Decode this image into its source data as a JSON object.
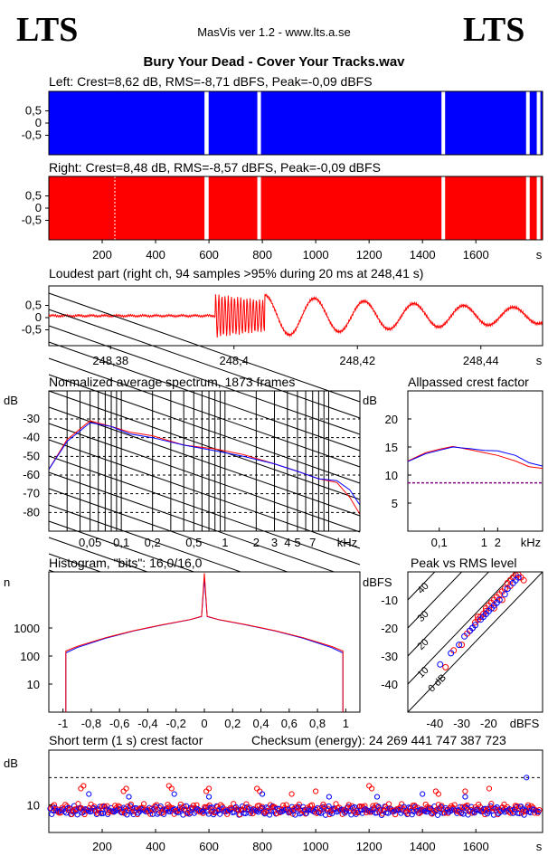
{
  "header": {
    "logo_left": "LTS",
    "logo_right": "LTS",
    "app_title": "MasVis ver 1.2 - www.lts.a.se",
    "song_title": "Bury Your Dead - Cover Your Tracks.wav"
  },
  "colors": {
    "left": "#0000ff",
    "right": "#ff0000",
    "axis": "#000000"
  },
  "chart_data": [
    {
      "id": "left",
      "type": "area",
      "title": "Left: Crest=8,62 dB, RMS=-8,71 dBFS, Peak=-0,09 dBFS",
      "ylim": [
        -1,
        1
      ],
      "y_ticks": [
        "0,5",
        "0",
        "-0,5"
      ],
      "xlim": [
        0,
        1850
      ],
      "gaps": [
        590,
        592,
        788,
        1478,
        1795,
        1835
      ]
    },
    {
      "id": "right",
      "type": "area",
      "title": "Right: Crest=8,48 dB, RMS=-8,57 dBFS, Peak=-0,09 dBFS",
      "ylim": [
        -1,
        1
      ],
      "y_ticks": [
        "0,5",
        "0",
        "-0,5"
      ],
      "xlim": [
        0,
        1850
      ],
      "x_ticks": [
        "200",
        "400",
        "600",
        "800",
        "1000",
        "1200",
        "1400",
        "1600",
        "s"
      ],
      "gaps": [
        590,
        592,
        788,
        1478,
        1795,
        1835
      ]
    },
    {
      "id": "loudest",
      "type": "line",
      "title": "Loudest part (right ch, 94 samples >95% during 20 ms at 248,41 s)",
      "ylim": [
        -1,
        1
      ],
      "y_ticks": [
        "0,5",
        "0",
        "-0,5"
      ],
      "xlim": [
        248.37,
        248.45
      ],
      "x_ticks": [
        "248,38",
        "248,4",
        "248,42",
        "248,44",
        "s"
      ]
    },
    {
      "id": "spectrum",
      "type": "line",
      "title": "Normalized average spectrum, 1873 frames",
      "ylabel": "dB",
      "y_ticks": [
        "-30",
        "-40",
        "-50",
        "-60",
        "-70",
        "-80"
      ],
      "ylim": [
        -90,
        -15
      ],
      "x_ticks": [
        "0,05",
        "0,1",
        "0,2",
        "0,5",
        "1",
        "2",
        "3",
        "4",
        "5",
        "7",
        "kHz"
      ],
      "xlim_khz": [
        0.02,
        20
      ],
      "series": [
        {
          "color": "red",
          "x": [
            0.02,
            0.03,
            0.05,
            0.08,
            0.12,
            0.2,
            0.4,
            0.8,
            1.5,
            3,
            5,
            8,
            12,
            16,
            20
          ],
          "y": [
            -57,
            -41,
            -31,
            -34,
            -37,
            -39,
            -44,
            -46,
            -49,
            -54,
            -58,
            -62,
            -64,
            -72,
            -81
          ]
        },
        {
          "color": "blue",
          "x": [
            0.02,
            0.03,
            0.05,
            0.08,
            0.12,
            0.2,
            0.4,
            0.8,
            1.5,
            3,
            5,
            8,
            12,
            16,
            20
          ],
          "y": [
            -57,
            -42,
            -32,
            -34,
            -38,
            -40,
            -44,
            -47,
            -50,
            -54,
            -58,
            -62,
            -63,
            -68,
            -76
          ]
        }
      ]
    },
    {
      "id": "allpass",
      "type": "line",
      "title": "Allpassed crest factor",
      "ylabel": "dB",
      "y_ticks": [
        "20",
        "15",
        "10",
        "5"
      ],
      "ylim": [
        0,
        25
      ],
      "x_ticks": [
        "0,1",
        "1",
        "2",
        "kHz"
      ],
      "xlim_khz": [
        0.02,
        20
      ],
      "reference_db": 8.6,
      "series": [
        {
          "color": "red",
          "x": [
            0.02,
            0.05,
            0.1,
            0.2,
            0.5,
            1,
            2,
            5,
            10,
            20
          ],
          "y": [
            12.5,
            14,
            14.6,
            15.1,
            14.5,
            14,
            13.5,
            12.5,
            11.5,
            11.2
          ]
        },
        {
          "color": "blue",
          "x": [
            0.02,
            0.05,
            0.1,
            0.2,
            0.5,
            1,
            2,
            5,
            10,
            20
          ],
          "y": [
            12.4,
            13.8,
            14.4,
            15.0,
            14.7,
            14.4,
            14.3,
            13.5,
            12.2,
            11.6
          ]
        }
      ]
    },
    {
      "id": "histogram",
      "type": "line",
      "title": "Histogram, \"bits\": 16,0/16,0",
      "ylabel": "n",
      "y_ticks": [
        "1000",
        "100",
        "10"
      ],
      "ylim_log": [
        1,
        100000
      ],
      "x_ticks": [
        "-1",
        "-0,8",
        "-0,6",
        "-0,4",
        "-0,2",
        "0",
        "0,2",
        "0,4",
        "0,6",
        "0,8",
        "1"
      ],
      "xlim": [
        -1.1,
        1.1
      ],
      "series": [
        {
          "color": "red",
          "x": [
            -0.98,
            -0.9,
            -0.7,
            -0.5,
            -0.3,
            -0.1,
            -0.02,
            0,
            0.02,
            0.1,
            0.3,
            0.5,
            0.7,
            0.9,
            0.98
          ],
          "y": [
            150,
            220,
            450,
            800,
            1300,
            2000,
            2600,
            90000,
            2600,
            2000,
            1300,
            800,
            450,
            220,
            150
          ]
        },
        {
          "color": "blue",
          "x": [
            -0.98,
            -0.9,
            -0.7,
            -0.5,
            -0.3,
            -0.1,
            -0.02,
            0,
            0.02,
            0.1,
            0.3,
            0.5,
            0.7,
            0.9,
            0.98
          ],
          "y": [
            130,
            200,
            430,
            780,
            1280,
            1980,
            2550,
            60000,
            2550,
            1980,
            1280,
            780,
            430,
            200,
            130
          ]
        }
      ]
    },
    {
      "id": "peak_rms",
      "type": "scatter",
      "title": "Peak vs RMS level",
      "ylabel": "dBFS",
      "xlabel": "dBFS",
      "y_ticks": [
        "-10",
        "-20",
        "-30",
        "-40"
      ],
      "x_ticks": [
        "-40",
        "-30",
        "-20"
      ],
      "xlim": [
        -50,
        0
      ],
      "ylim": [
        -50,
        0
      ],
      "diagonal_labels": [
        "0 dB",
        "10",
        "20",
        "30",
        "40"
      ],
      "series": [
        {
          "color": "red",
          "x": [
            -36,
            -33,
            -30,
            -28,
            -26,
            -25,
            -24,
            -23,
            -22,
            -21,
            -20,
            -19,
            -18,
            -17,
            -16,
            -15,
            -14,
            -13,
            -12,
            -11,
            -10,
            -9,
            -15,
            -18,
            -21,
            -24,
            -27,
            -12,
            -8,
            -7
          ],
          "y": [
            -34,
            -28,
            -26,
            -22,
            -20,
            -18,
            -17,
            -16,
            -15,
            -13,
            -12,
            -11,
            -10,
            -9,
            -8,
            -7,
            -6,
            -4,
            -3,
            -2,
            -1,
            -1,
            -10,
            -13,
            -14,
            -16,
            -21,
            -5,
            -2,
            -3
          ]
        },
        {
          "color": "blue",
          "x": [
            -38,
            -34,
            -31,
            -29,
            -27,
            -25,
            -23,
            -22,
            -20,
            -19,
            -17,
            -16,
            -14,
            -13,
            -11,
            -10,
            -9,
            -26,
            -21,
            -18
          ],
          "y": [
            -33,
            -29,
            -26,
            -23,
            -21,
            -19,
            -17,
            -16,
            -14,
            -13,
            -11,
            -10,
            -8,
            -6,
            -4,
            -3,
            -2,
            -20,
            -15,
            -12
          ]
        }
      ]
    },
    {
      "id": "short_term_crest",
      "type": "scatter",
      "title": "Short term (1 s) crest factor",
      "checksum_text": "Checksum (energy):  24 269 441 747 387 723",
      "ylabel": "dB",
      "y_ticks": [
        "10"
      ],
      "ylim": [
        0,
        30
      ],
      "reference_db": 20,
      "xlim": [
        0,
        1850
      ],
      "x_ticks": [
        "200",
        "400",
        "600",
        "800",
        "1000",
        "1200",
        "1400",
        "1600",
        "s"
      ],
      "series": [
        {
          "color": "red",
          "x": [
            120,
            130,
            280,
            290,
            450,
            460,
            590,
            600,
            780,
            790,
            910,
            1000,
            1200,
            1210,
            1450,
            1460,
            1560,
            1650
          ],
          "y": [
            16,
            17,
            15,
            16,
            17,
            16,
            15,
            16,
            16,
            15,
            14,
            15,
            17,
            16,
            15,
            14,
            15,
            16
          ]
        },
        {
          "color": "blue",
          "x": [
            150,
            300,
            470,
            600,
            800,
            1050,
            1230,
            1400,
            1560,
            1790
          ],
          "y": [
            14,
            13,
            14,
            13,
            14,
            13,
            13,
            14,
            13,
            20
          ]
        }
      ]
    }
  ]
}
